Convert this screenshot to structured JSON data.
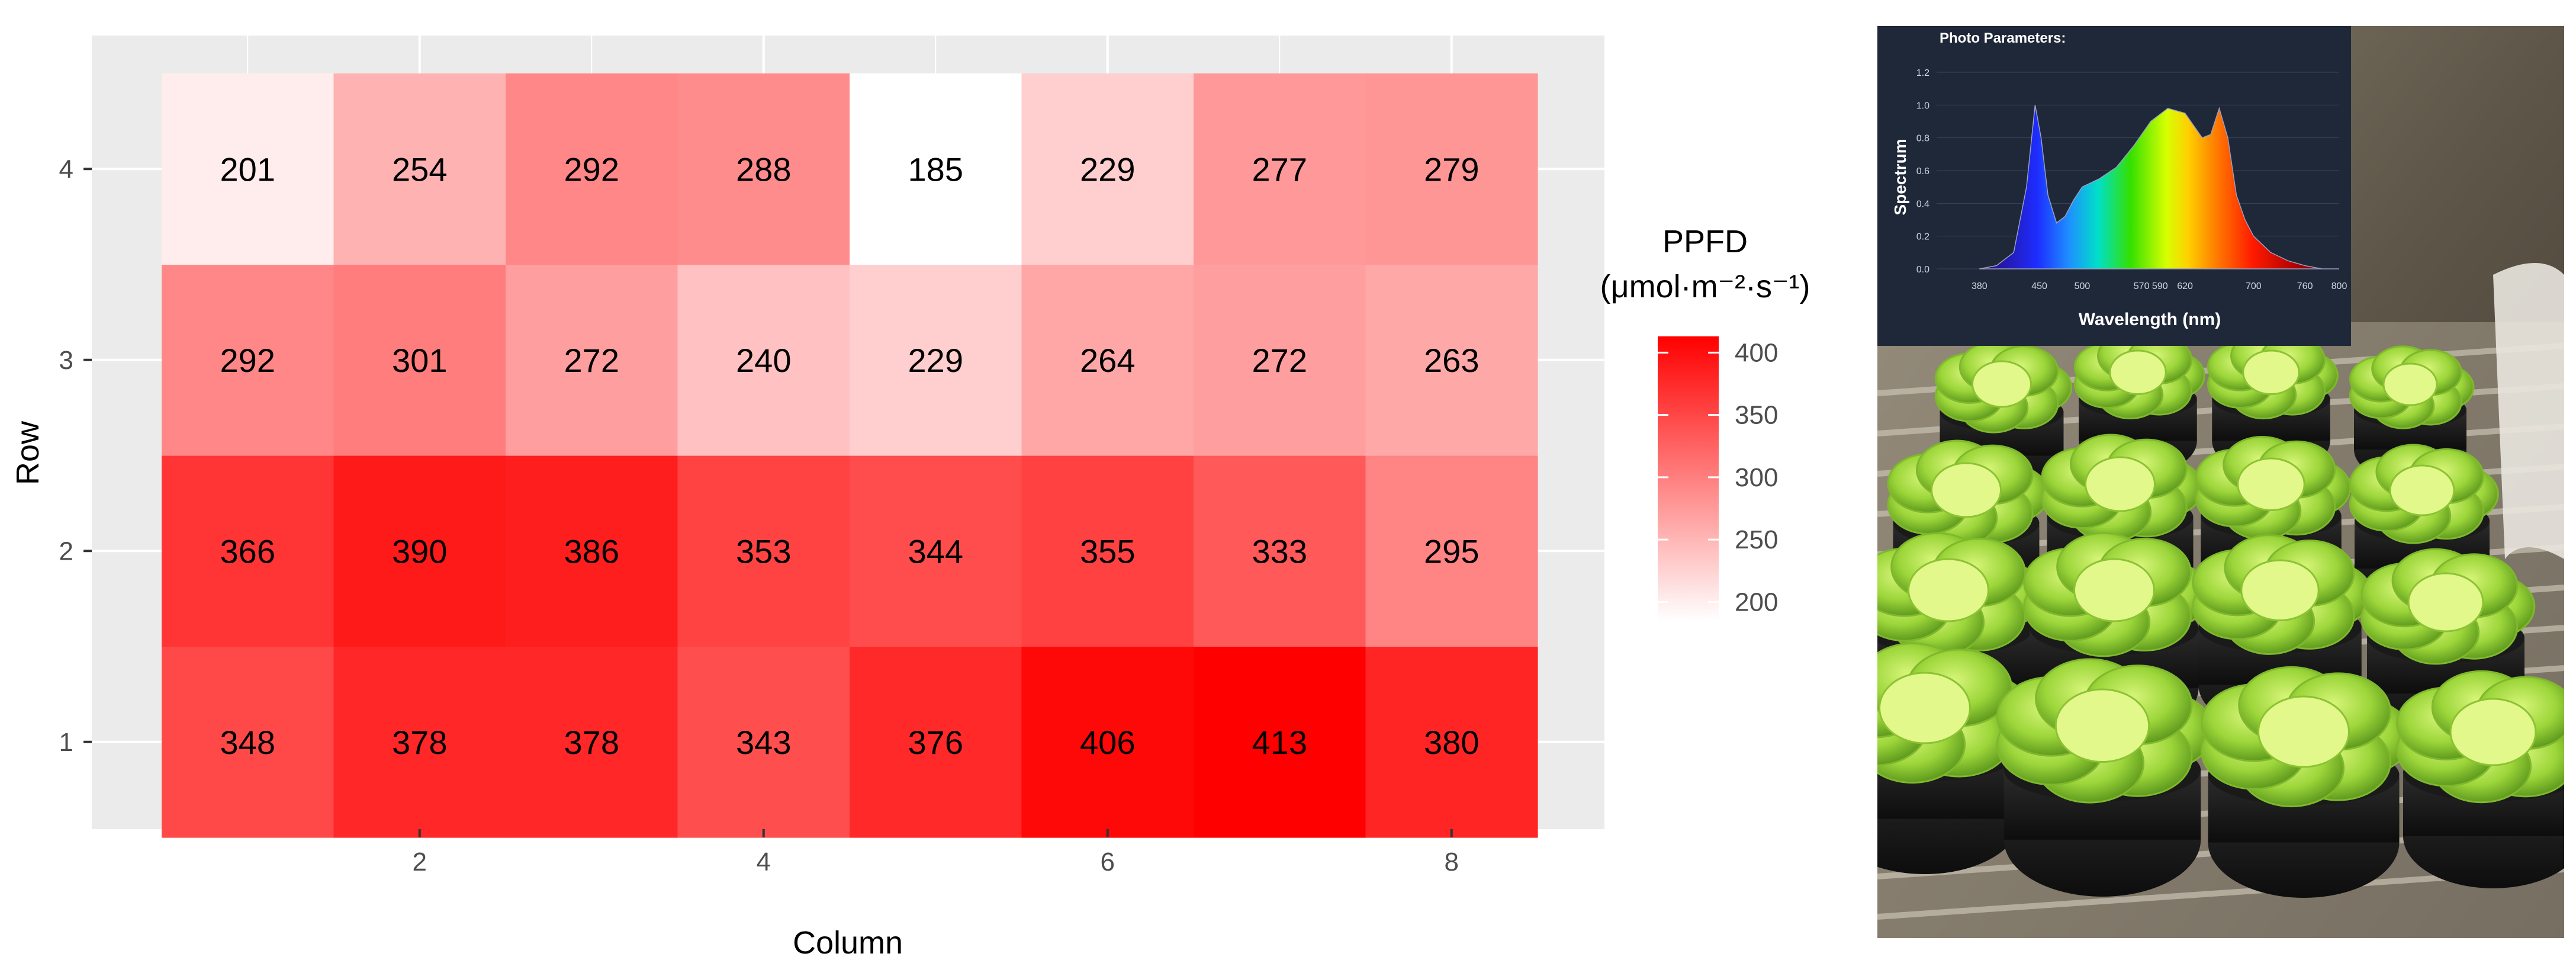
{
  "chart_data": [
    {
      "type": "heatmap",
      "xlabel": "Column",
      "ylabel": "Row",
      "x": [
        1,
        2,
        3,
        4,
        5,
        6,
        7,
        8
      ],
      "y": [
        1,
        2,
        3,
        4
      ],
      "x_ticks": [
        "2",
        "4",
        "6",
        "8"
      ],
      "y_ticks": [
        "1",
        "2",
        "3",
        "4"
      ],
      "values": [
        [
          348,
          378,
          378,
          343,
          376,
          406,
          413,
          380
        ],
        [
          366,
          390,
          386,
          353,
          344,
          355,
          333,
          295
        ],
        [
          292,
          301,
          272,
          240,
          229,
          264,
          272,
          263
        ],
        [
          201,
          254,
          292,
          288,
          185,
          229,
          277,
          279
        ]
      ],
      "color_scale": {
        "low": "#ffffff",
        "high": "#ff0000",
        "min": 185,
        "max": 413
      },
      "legend": {
        "title_line1": "PPFD",
        "title_line2": "(μmol·m⁻²·s⁻¹)",
        "ticks": [
          "200",
          "250",
          "300",
          "350",
          "400"
        ],
        "tick_values": [
          200,
          250,
          300,
          350,
          400
        ],
        "placement": "right"
      },
      "grid": true,
      "panel_background": "#ebebeb"
    },
    {
      "type": "area",
      "header": "Photo Parameters:",
      "xlabel": "Wavelength (nm)",
      "ylabel": "Spectrum",
      "x_ticks": [
        "380",
        "450",
        "500",
        "570 590",
        "620",
        "700",
        "760",
        "800"
      ],
      "y_ticks": [
        "0.0",
        "0.2",
        "0.4",
        "0.6",
        "0.8",
        "1.0",
        "1.2"
      ],
      "xlim": [
        330,
        800
      ],
      "ylim": [
        0,
        1.2
      ],
      "x": [
        380,
        400,
        420,
        435,
        445,
        452,
        460,
        470,
        480,
        490,
        500,
        520,
        540,
        560,
        580,
        600,
        620,
        640,
        650,
        660,
        670,
        680,
        690,
        700,
        720,
        740,
        760,
        780,
        800
      ],
      "values": [
        0.0,
        0.02,
        0.1,
        0.5,
        1.0,
        0.8,
        0.45,
        0.28,
        0.32,
        0.42,
        0.5,
        0.55,
        0.62,
        0.75,
        0.9,
        0.98,
        0.95,
        0.8,
        0.82,
        0.98,
        0.8,
        0.45,
        0.3,
        0.2,
        0.1,
        0.05,
        0.02,
        0.0,
        0.0
      ]
    }
  ],
  "photo": {
    "subject": "lettuce plants in black pots on a rack"
  }
}
